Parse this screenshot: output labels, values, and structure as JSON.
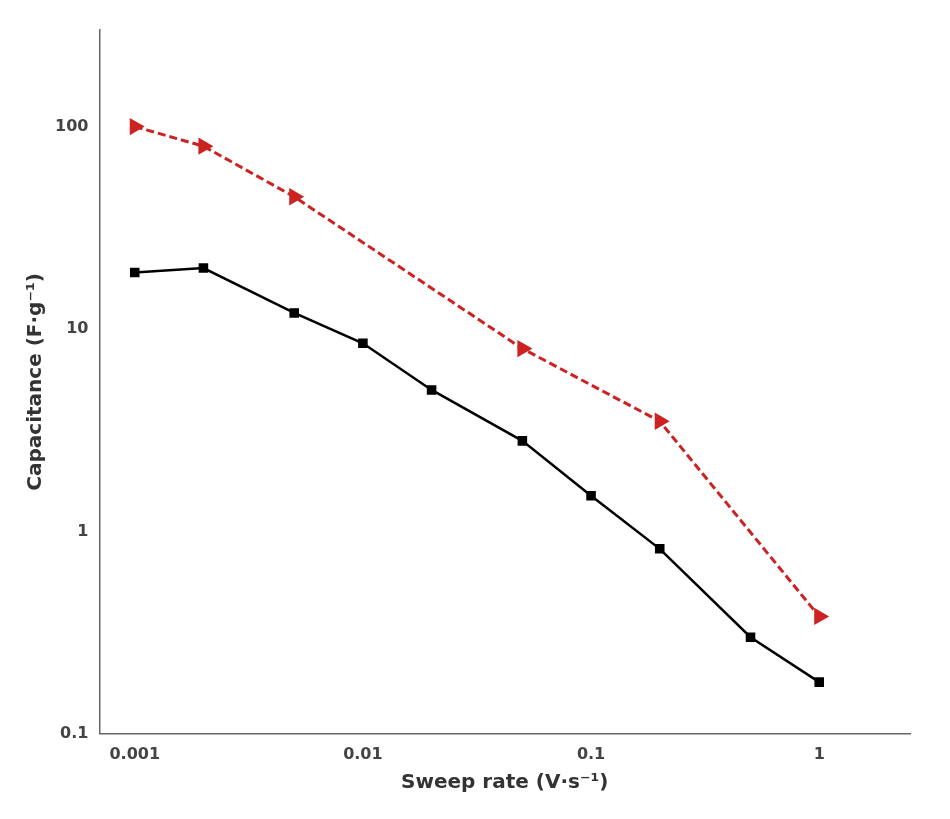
{
  "chart_data": {
    "type": "line",
    "xlabel": "Sweep rate (V·s⁻¹)",
    "ylabel": "Capacitance (F·g⁻¹)",
    "log": true,
    "xlim": [
      0.0007,
      2.5
    ],
    "ylim": [
      0.1,
      300
    ],
    "xticks": [
      0.001,
      0.01,
      0.1,
      1
    ],
    "yticks": [
      0.1,
      1,
      10,
      100
    ],
    "grid": false,
    "series": [
      {
        "color": "#000000",
        "marker": "square",
        "line_style": "solid",
        "x": [
          0.001,
          0.002,
          0.005,
          0.01,
          0.02,
          0.05,
          0.1,
          0.2,
          0.5,
          1.0
        ],
        "values": [
          19.0,
          20.0,
          12.0,
          8.5,
          5.0,
          2.8,
          1.5,
          0.82,
          0.3,
          0.18
        ]
      },
      {
        "color": "#cc2222",
        "marker": "triangle-right",
        "line_style": "dashed",
        "x": [
          0.001,
          0.002,
          0.005,
          0.05,
          0.2,
          1.0
        ],
        "values": [
          100.0,
          80.0,
          45.0,
          8.0,
          3.5,
          0.38
        ]
      }
    ]
  }
}
